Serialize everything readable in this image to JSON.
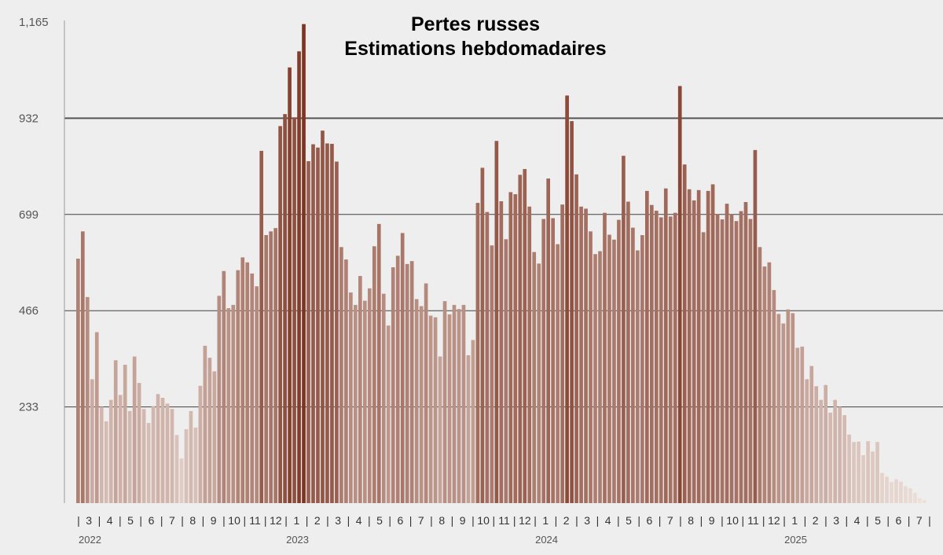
{
  "chart_data": {
    "type": "bar",
    "title_line1": "Pertes russes",
    "title_line2": "Estimations hebdomadaires",
    "xlabel": "",
    "ylabel": "",
    "ylim": [
      0,
      1165
    ],
    "y_ticks": [
      "1,165",
      "932",
      "699",
      "466",
      "233"
    ],
    "y_tick_values": [
      1165,
      932,
      699,
      466,
      233
    ],
    "grid": "horizontal",
    "month_labels": [
      "|",
      "3",
      "|",
      "4",
      "|",
      "5",
      "|",
      "6",
      "|",
      "7",
      "|",
      "8",
      "|",
      "9",
      "|",
      "10",
      "|",
      "11",
      "|",
      "12",
      "|",
      "1",
      "|",
      "2",
      "|",
      "3",
      "|",
      "4",
      "|",
      "5",
      "|",
      "6",
      "|",
      "7",
      "|",
      "8",
      "|",
      "9",
      "|",
      "10",
      "|",
      "11",
      "|",
      "12",
      "|",
      "1",
      "|",
      "2",
      "|",
      "3",
      "|",
      "4",
      "|",
      "5",
      "|",
      "6",
      "|",
      "7",
      "|",
      "8",
      "|",
      "9",
      "|",
      "10",
      "|",
      "11",
      "|",
      "12",
      "|",
      "1",
      "|",
      "2",
      "|",
      "3",
      "|",
      "4",
      "|",
      "5",
      "|",
      "6",
      "|",
      "7",
      "|"
    ],
    "year_labels": [
      "2022",
      "2023",
      "2024",
      "2025"
    ],
    "year_label_months": [
      0,
      10,
      22,
      34
    ],
    "colors": {
      "low": "#efe3dd",
      "high": "#7d3320",
      "grid": "#222222",
      "background": "#eeeeee"
    },
    "values": [
      592,
      658,
      499,
      300,
      414,
      233,
      198,
      250,
      346,
      262,
      335,
      223,
      355,
      291,
      228,
      194,
      235,
      264,
      255,
      241,
      228,
      165,
      108,
      179,
      223,
      183,
      284,
      381,
      352,
      319,
      502,
      562,
      472,
      480,
      564,
      595,
      583,
      556,
      525,
      853,
      649,
      658,
      666,
      913,
      942,
      1055,
      934,
      1094,
      1160,
      828,
      869,
      861,
      902,
      871,
      870,
      827,
      620,
      590,
      510,
      480,
      550,
      490,
      520,
      622,
      676,
      507,
      430,
      571,
      599,
      654,
      579,
      586,
      494,
      477,
      532,
      454,
      450,
      355,
      489,
      457,
      480,
      470,
      480,
      358,
      395,
      727,
      812,
      705,
      624,
      877,
      731,
      639,
      753,
      748,
      795,
      809,
      718,
      608,
      580,
      688,
      786,
      690,
      627,
      723,
      987,
      925,
      796,
      718,
      713,
      658,
      603,
      610,
      703,
      650,
      638,
      686,
      841,
      730,
      667,
      612,
      649,
      756,
      722,
      708,
      692,
      762,
      694,
      703,
      1010,
      820,
      760,
      733,
      758,
      656,
      756,
      772,
      700,
      687,
      725,
      700,
      683,
      707,
      729,
      688,
      855,
      620,
      573,
      583,
      516,
      458,
      435,
      469,
      460,
      376,
      379,
      300,
      332,
      283,
      250,
      286,
      219,
      250,
      233,
      213,
      166,
      148,
      149,
      116,
      150,
      125,
      148,
      73,
      64,
      51,
      58,
      52,
      41,
      36,
      25,
      12,
      8
    ]
  }
}
